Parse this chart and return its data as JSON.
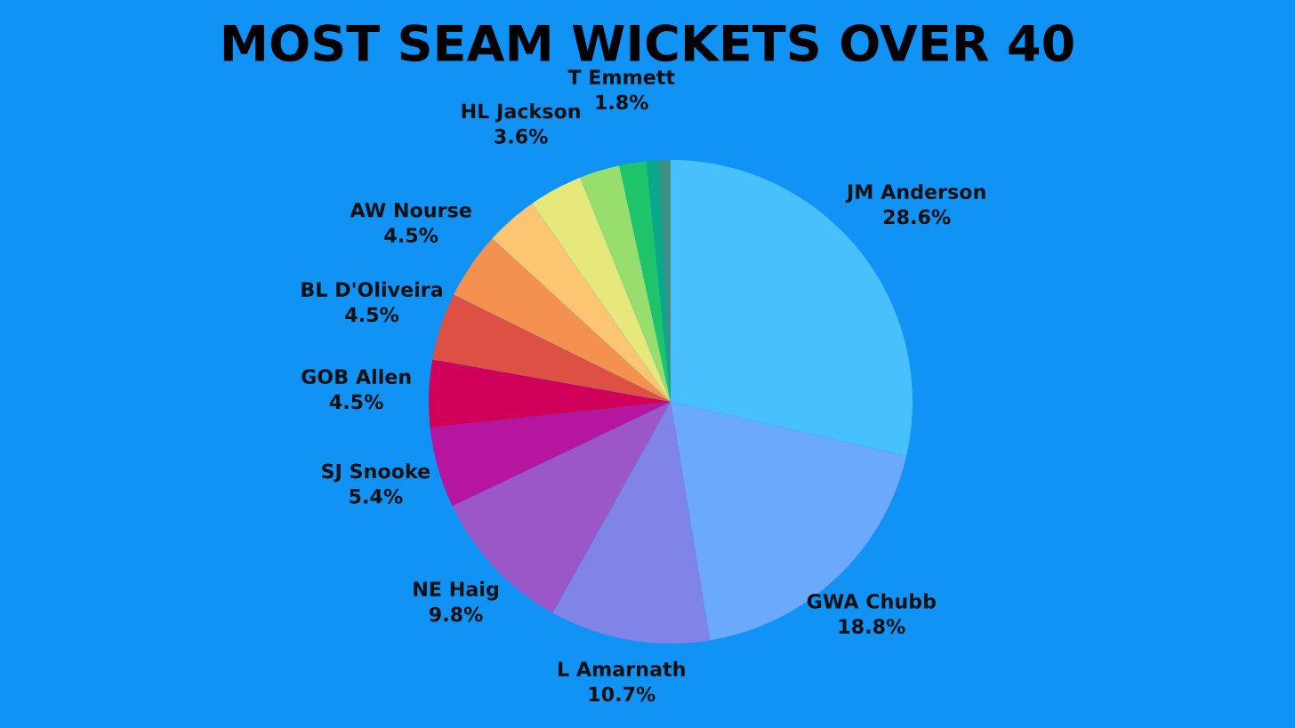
{
  "chart_data": {
    "type": "pie",
    "title": "MOST SEAM WICKETS OVER 40",
    "categories": [
      "JM Anderson",
      "GWA Chubb",
      "L Amarnath",
      "NE Haig",
      "SJ Snooke",
      "GOB Allen",
      "BL D'Oliveira",
      "AW Nourse",
      null,
      "HL Jackson",
      null,
      "T Emmett",
      null,
      null
    ],
    "values": [
      28.6,
      18.8,
      10.7,
      9.8,
      5.4,
      4.5,
      4.5,
      4.5,
      3.5,
      3.6,
      2.7,
      1.8,
      0.8,
      0.8
    ],
    "value_labels": [
      "28.6%",
      "18.8%",
      "10.7%",
      "9.8%",
      "5.4%",
      "4.5%",
      "4.5%",
      "4.5%",
      null,
      "3.6%",
      null,
      "1.8%",
      null,
      null
    ],
    "colors": [
      "#48c0fc",
      "#6aa9fc",
      "#7f84e6",
      "#9b57c8",
      "#b5159f",
      "#d0005a",
      "#dd5043",
      "#f4914f",
      "#fcc572",
      "#e6e87c",
      "#98de6e",
      "#1fc46a",
      "#0aa88a",
      "#3a8f86"
    ],
    "legend": false
  }
}
